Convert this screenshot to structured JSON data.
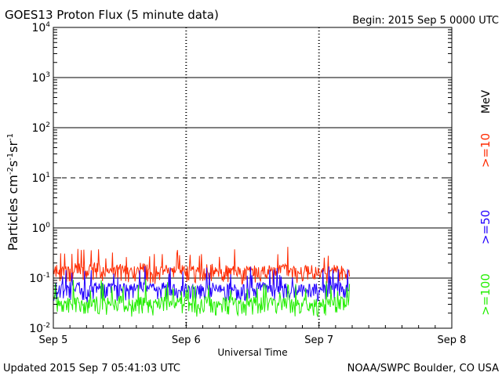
{
  "header": {
    "title": "GOES13 Proton Flux (5 minute data)",
    "begin": "Begin: 2015 Sep 5 0000 UTC"
  },
  "footer": {
    "updated": "Updated 2015 Sep  7 05:41:03 UTC",
    "credit": "NOAA/SWPC Boulder, CO USA"
  },
  "legend": {
    "unit": "MeV",
    "entries": [
      {
        "label": ">=10",
        "color": "#ff2a00"
      },
      {
        "label": ">=50",
        "color": "#2200ff"
      },
      {
        "label": ">=100",
        "color": "#22ee00"
      }
    ]
  },
  "chart_data": {
    "type": "line",
    "title": "GOES13 Proton Flux (5 minute data)",
    "xlabel": "Universal Time",
    "ylabel": "Particles cm-2s-1sr-1",
    "yscale": "log",
    "ylim": [
      0.01,
      10000
    ],
    "xlim": [
      0,
      72
    ],
    "x_unit": "hours since 2015 Sep 5 0000 UTC",
    "x_ticks": [
      {
        "label": "Sep 5",
        "value": 0
      },
      {
        "label": "Sep 6",
        "value": 24
      },
      {
        "label": "Sep 7",
        "value": 48
      },
      {
        "label": "Sep 8",
        "value": 72
      }
    ],
    "y_ticks": [
      {
        "base": "10",
        "exp": "-2",
        "value": 0.01
      },
      {
        "base": "10",
        "exp": "-1",
        "value": 0.1
      },
      {
        "base": "10",
        "exp": "0",
        "value": 1
      },
      {
        "base": "10",
        "exp": "1",
        "value": 10
      },
      {
        "base": "10",
        "exp": "2",
        "value": 100
      },
      {
        "base": "10",
        "exp": "3",
        "value": 1000
      },
      {
        "base": "10",
        "exp": "4",
        "value": 10000
      }
    ],
    "thresholds": [
      {
        "value": 10,
        "style": "dashed"
      },
      {
        "value": 0.1,
        "style": "solid"
      },
      {
        "value": 1,
        "style": "solid"
      },
      {
        "value": 100,
        "style": "solid"
      },
      {
        "value": 1000,
        "style": "solid"
      }
    ],
    "data_end_hour": 53.6,
    "series": [
      {
        "name": ">=10",
        "color": "#ff2a00",
        "x": [
          0,
          2,
          4,
          6,
          8,
          10,
          12,
          14,
          16,
          18,
          20,
          22,
          24,
          26,
          28,
          30,
          32,
          34,
          36,
          38,
          40,
          42,
          44,
          46,
          48,
          50,
          52,
          53.6
        ],
        "values": [
          0.15,
          0.13,
          0.16,
          0.14,
          0.17,
          0.13,
          0.15,
          0.14,
          0.16,
          0.13,
          0.15,
          0.14,
          0.15,
          0.13,
          0.16,
          0.14,
          0.15,
          0.13,
          0.14,
          0.15,
          0.13,
          0.16,
          0.14,
          0.15,
          0.13,
          0.14,
          0.15,
          0.12
        ]
      },
      {
        "name": ">=50",
        "color": "#2200ff",
        "x": [
          0,
          2,
          4,
          6,
          8,
          10,
          12,
          14,
          16,
          18,
          20,
          22,
          24,
          26,
          28,
          30,
          32,
          34,
          36,
          38,
          40,
          42,
          44,
          46,
          48,
          50,
          52,
          53.6
        ],
        "values": [
          0.065,
          0.06,
          0.07,
          0.058,
          0.066,
          0.062,
          0.064,
          0.059,
          0.068,
          0.061,
          0.065,
          0.06,
          0.063,
          0.058,
          0.067,
          0.06,
          0.064,
          0.059,
          0.062,
          0.066,
          0.06,
          0.064,
          0.058,
          0.063,
          0.06,
          0.062,
          0.065,
          0.058
        ]
      },
      {
        "name": ">=100",
        "color": "#22ee00",
        "x": [
          0,
          2,
          4,
          6,
          8,
          10,
          12,
          14,
          16,
          18,
          20,
          22,
          24,
          26,
          28,
          30,
          32,
          34,
          36,
          38,
          40,
          42,
          44,
          46,
          48,
          50,
          52,
          53.6
        ],
        "values": [
          0.035,
          0.032,
          0.036,
          0.031,
          0.034,
          0.033,
          0.035,
          0.03,
          0.036,
          0.032,
          0.034,
          0.031,
          0.033,
          0.03,
          0.035,
          0.032,
          0.034,
          0.031,
          0.033,
          0.035,
          0.031,
          0.034,
          0.03,
          0.033,
          0.031,
          0.032,
          0.034,
          0.03
        ]
      }
    ]
  }
}
